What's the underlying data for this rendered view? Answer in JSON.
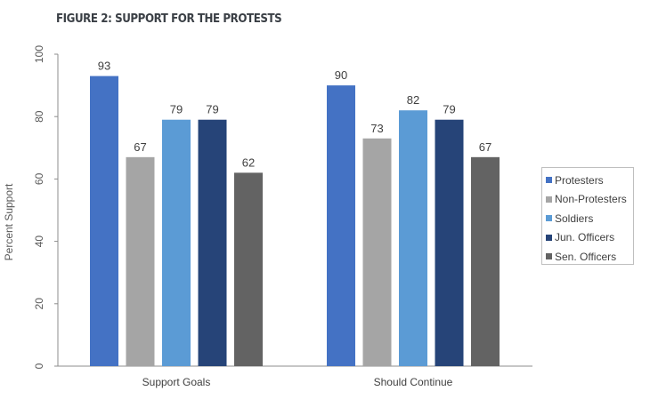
{
  "chart_data": {
    "type": "bar",
    "title": "FIGURE 2: SUPPORT FOR THE PROTESTS",
    "xlabel": "",
    "ylabel": "Percent Support",
    "ylim": [
      0,
      100
    ],
    "yticks": [
      0,
      20,
      40,
      60,
      80,
      100
    ],
    "grid": false,
    "legend_position": "right",
    "categories": [
      "Support Goals",
      "Should Continue"
    ],
    "series": [
      {
        "name": "Protesters",
        "color": "#4472C4",
        "values": [
          93,
          90
        ]
      },
      {
        "name": "Non-Protesters",
        "color": "#A5A5A5",
        "values": [
          67,
          73
        ]
      },
      {
        "name": "Soldiers",
        "color": "#5B9BD5",
        "values": [
          79,
          82
        ]
      },
      {
        "name": "Jun. Officers",
        "color": "#264478",
        "values": [
          79,
          79
        ]
      },
      {
        "name": "Sen. Officers",
        "color": "#636363",
        "values": [
          62,
          67
        ]
      }
    ]
  }
}
